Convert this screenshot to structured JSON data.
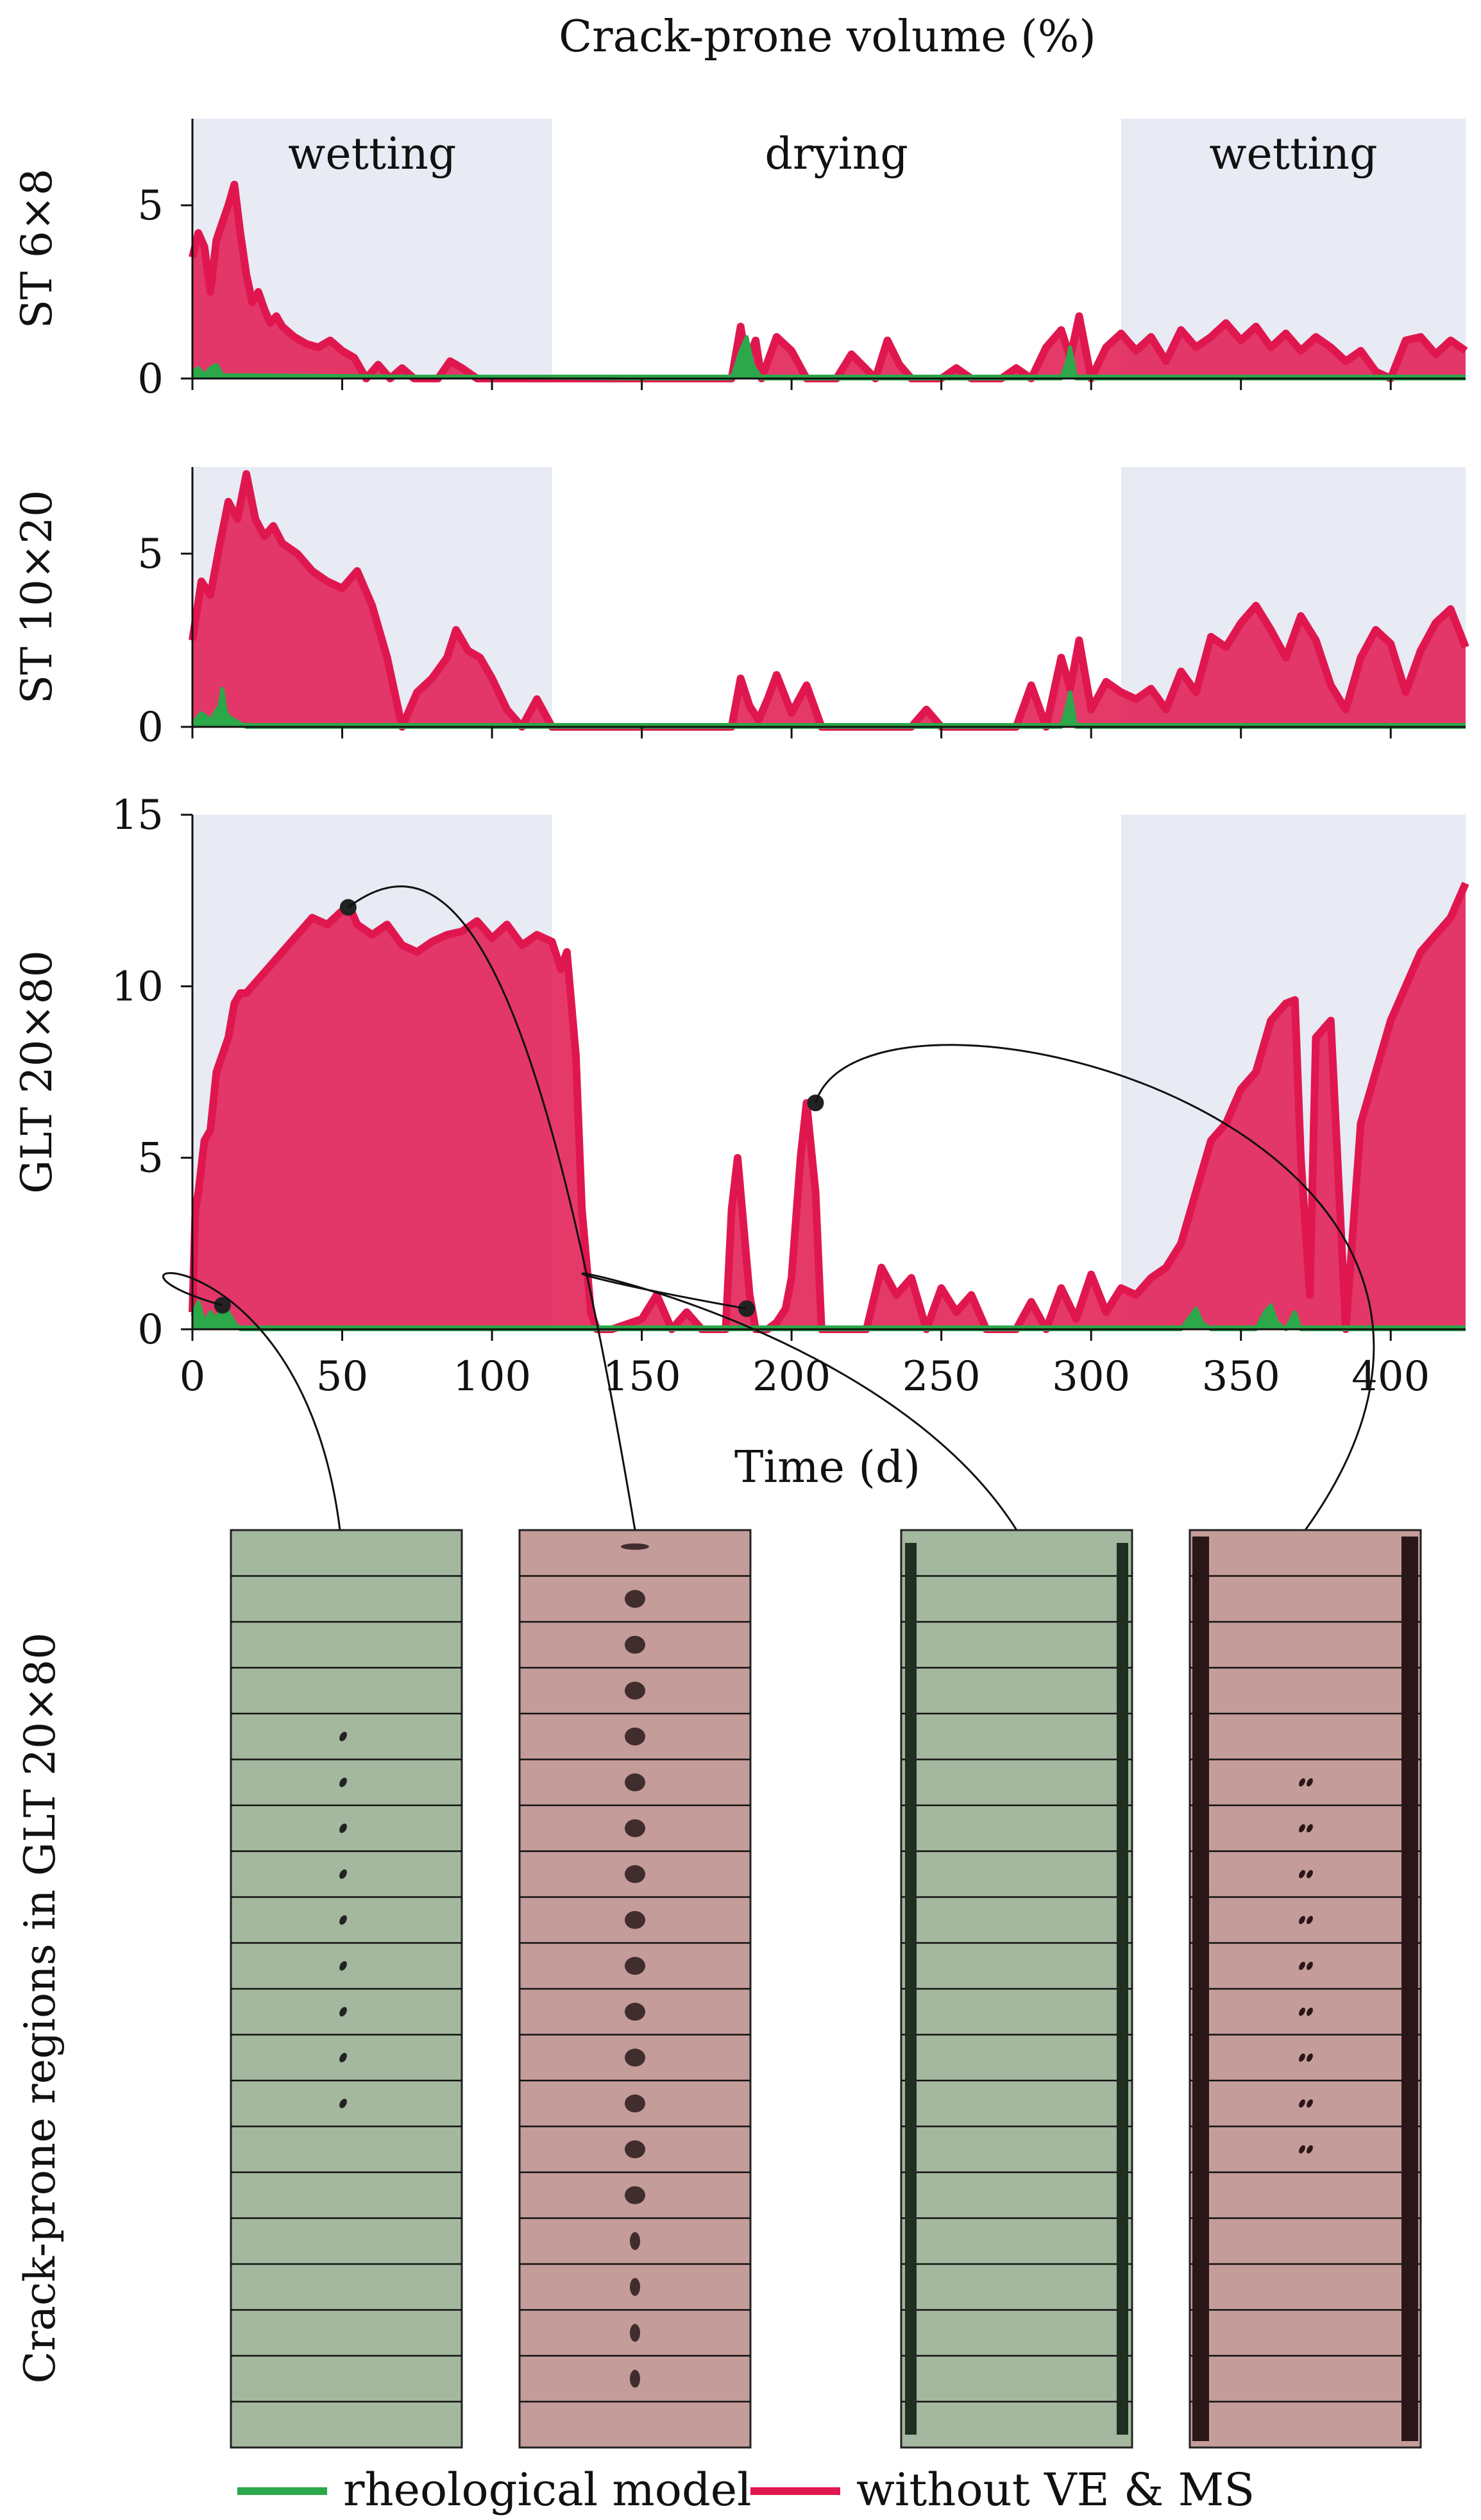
{
  "chart_data": {
    "type": "area",
    "title": "Crack-prone volume (%)",
    "xlabel": "Time (d)",
    "xlim": [
      0,
      425
    ],
    "xticks": [
      0,
      50,
      100,
      150,
      200,
      250,
      300,
      350,
      400
    ],
    "phases": [
      {
        "label": "wetting",
        "start": 0,
        "end": 120,
        "shaded": true
      },
      {
        "label": "drying",
        "start": 120,
        "end": 310,
        "shaded": false
      },
      {
        "label": "wetting",
        "start": 310,
        "end": 425,
        "shaded": true
      }
    ],
    "colors": {
      "rheological": "#2ca84a",
      "without": "#e0174f",
      "shade": "#e8eaf4",
      "thumb_green": "#a3b89e",
      "thumb_red": "#c49c9a"
    },
    "legend": [
      {
        "name": "rheological model",
        "color": "#2ca84a"
      },
      {
        "name": "without VE & MS",
        "color": "#e0174f"
      }
    ],
    "panels": [
      {
        "ylabel": "ST 6×8",
        "ylim": [
          0,
          7.5
        ],
        "yticks": [
          0,
          5
        ],
        "series": [
          {
            "name": "without VE & MS",
            "x": [
              0,
              2,
              4,
              6,
              8,
              10,
              12,
              14,
              16,
              18,
              20,
              22,
              24,
              26,
              28,
              30,
              34,
              38,
              42,
              46,
              50,
              54,
              58,
              62,
              66,
              70,
              74,
              78,
              82,
              86,
              90,
              95,
              100,
              110,
              118,
              130,
              150,
              170,
              180,
              183,
              185,
              188,
              190,
              195,
              200,
              205,
              210,
              215,
              220,
              228,
              232,
              236,
              240,
              250,
              255,
              260,
              270,
              275,
              280,
              285,
              290,
              293,
              296,
              300,
              305,
              310,
              315,
              320,
              325,
              330,
              335,
              340,
              345,
              350,
              355,
              360,
              365,
              370,
              375,
              380,
              385,
              390,
              395,
              400,
              405,
              410,
              415,
              420,
              425
            ],
            "y": [
              3.5,
              4.2,
              3.8,
              2.5,
              4.0,
              4.5,
              5.0,
              5.6,
              4.2,
              3.0,
              2.2,
              2.5,
              2.0,
              1.6,
              1.8,
              1.5,
              1.2,
              1.0,
              0.9,
              1.1,
              0.8,
              0.6,
              0.0,
              0.4,
              0.0,
              0.3,
              0.0,
              0.0,
              0.0,
              0.5,
              0.3,
              0.0,
              0.0,
              0.0,
              0.0,
              0.0,
              0.0,
              0.0,
              0.0,
              1.5,
              0.4,
              1.1,
              0.0,
              1.2,
              0.8,
              0.0,
              0.0,
              0.0,
              0.7,
              0.0,
              1.1,
              0.4,
              0.0,
              0.0,
              0.3,
              0.0,
              0.0,
              0.3,
              0.0,
              0.9,
              1.4,
              0.6,
              1.8,
              0.0,
              0.9,
              1.3,
              0.8,
              1.2,
              0.5,
              1.4,
              0.9,
              1.2,
              1.6,
              1.1,
              1.5,
              0.9,
              1.3,
              0.8,
              1.2,
              0.9,
              0.5,
              0.8,
              0.2,
              0.0,
              1.1,
              1.2,
              0.7,
              1.1,
              0.8
            ]
          },
          {
            "name": "rheological model",
            "x": [
              0,
              2,
              4,
              6,
              8,
              10,
              150,
              180,
              183,
              185,
              187,
              190,
              290,
              292,
              293,
              295,
              425
            ],
            "y": [
              0.2,
              0.3,
              0.1,
              0.3,
              0.4,
              0.1,
              0.0,
              0.0,
              0.8,
              1.2,
              0.4,
              0.0,
              0.0,
              0.5,
              0.9,
              0.0,
              0.0
            ]
          }
        ]
      },
      {
        "ylabel": "ST 10×20",
        "ylim": [
          0,
          7.5
        ],
        "yticks": [
          0,
          5
        ],
        "series": [
          {
            "name": "without VE & MS",
            "x": [
              0,
              3,
              6,
              9,
              12,
              15,
              18,
              21,
              24,
              27,
              30,
              35,
              40,
              45,
              50,
              55,
              60,
              65,
              70,
              75,
              80,
              85,
              88,
              92,
              96,
              100,
              105,
              110,
              115,
              120,
              125,
              135,
              150,
              160,
              170,
              180,
              183,
              186,
              189,
              192,
              195,
              200,
              205,
              210,
              215,
              220,
              230,
              240,
              245,
              250,
              260,
              270,
              275,
              280,
              285,
              290,
              293,
              296,
              300,
              305,
              310,
              315,
              320,
              325,
              330,
              335,
              340,
              345,
              350,
              355,
              360,
              365,
              370,
              375,
              380,
              385,
              390,
              395,
              400,
              405,
              410,
              415,
              420,
              425
            ],
            "y": [
              2.5,
              4.2,
              3.8,
              5.2,
              6.5,
              6.0,
              7.3,
              6.0,
              5.5,
              5.8,
              5.3,
              5.0,
              4.5,
              4.2,
              4.0,
              4.5,
              3.5,
              2.0,
              0.0,
              1.0,
              1.4,
              2.0,
              2.8,
              2.2,
              2.0,
              1.4,
              0.5,
              0.0,
              0.8,
              0.0,
              0.0,
              0.0,
              0.0,
              0.0,
              0.0,
              0.0,
              1.4,
              0.6,
              0.2,
              0.8,
              1.5,
              0.4,
              1.2,
              0.0,
              0.0,
              0.0,
              0.0,
              0.0,
              0.5,
              0.0,
              0.0,
              0.0,
              0.0,
              1.2,
              0.0,
              2.0,
              1.1,
              2.5,
              0.5,
              1.3,
              1.0,
              0.8,
              1.1,
              0.5,
              1.6,
              1.0,
              2.6,
              2.3,
              3.0,
              3.5,
              2.8,
              2.0,
              3.2,
              2.5,
              1.2,
              0.5,
              2.0,
              2.8,
              2.4,
              1.0,
              2.2,
              3.0,
              3.4,
              2.3
            ]
          },
          {
            "name": "rheological model",
            "x": [
              0,
              3,
              6,
              9,
              10,
              11,
              12,
              14,
              16,
              18,
              150,
              290,
              292,
              293,
              295,
              425
            ],
            "y": [
              0.1,
              0.4,
              0.2,
              0.6,
              1.1,
              0.5,
              0.3,
              0.2,
              0.1,
              0.0,
              0.0,
              0.0,
              0.6,
              1.0,
              0.0,
              0.0
            ]
          }
        ]
      },
      {
        "ylabel": "GLT 20×80",
        "ylim": [
          0,
          15
        ],
        "yticks": [
          0,
          5,
          10,
          15
        ],
        "series": [
          {
            "name": "without VE & MS",
            "x": [
              0,
              1,
              2,
              4,
              6,
              8,
              10,
              12,
              14,
              16,
              18,
              20,
              25,
              30,
              35,
              40,
              45,
              50,
              52,
              55,
              60,
              65,
              70,
              75,
              80,
              85,
              90,
              95,
              100,
              105,
              110,
              115,
              120,
              123,
              125,
              128,
              130,
              133,
              135,
              140,
              150,
              155,
              160,
              165,
              170,
              175,
              178,
              180,
              182,
              184,
              186,
              188,
              190,
              192,
              195,
              198,
              200,
              203,
              205,
              208,
              210,
              212,
              215,
              220,
              225,
              230,
              235,
              240,
              245,
              250,
              255,
              260,
              265,
              270,
              275,
              280,
              285,
              290,
              295,
              300,
              305,
              310,
              315,
              320,
              325,
              330,
              335,
              340,
              345,
              350,
              355,
              360,
              365,
              368,
              370,
              373,
              375,
              380,
              385,
              390,
              395,
              400,
              405,
              410,
              415,
              420,
              425
            ],
            "y": [
              0.5,
              3.5,
              4.0,
              5.5,
              5.8,
              7.5,
              8.0,
              8.5,
              9.5,
              9.8,
              9.8,
              10.0,
              10.5,
              11.0,
              11.5,
              12.0,
              11.8,
              12.2,
              12.4,
              11.8,
              11.5,
              11.8,
              11.2,
              11.0,
              11.3,
              11.5,
              11.6,
              11.9,
              11.4,
              11.8,
              11.2,
              11.5,
              11.3,
              10.5,
              11.0,
              8.0,
              3.5,
              0.5,
              0.0,
              0.0,
              0.3,
              1.0,
              0.0,
              0.5,
              0.0,
              0.0,
              0.0,
              3.5,
              5.0,
              3.0,
              1.0,
              0.0,
              0.0,
              0.0,
              0.2,
              0.6,
              1.5,
              5.0,
              6.6,
              4.0,
              0.0,
              0.0,
              0.0,
              0.0,
              0.0,
              1.8,
              1.0,
              1.5,
              0.0,
              1.2,
              0.5,
              1.0,
              0.0,
              0.0,
              0.0,
              0.8,
              0.0,
              1.2,
              0.3,
              1.6,
              0.5,
              1.2,
              1.0,
              1.5,
              1.8,
              2.5,
              4.0,
              5.5,
              6.0,
              7.0,
              7.5,
              9.0,
              9.5,
              9.6,
              5.0,
              1.0,
              8.5,
              9.0,
              0.0,
              6.0,
              7.5,
              9.0,
              10.0,
              11.0,
              11.5,
              12.0,
              13.0
            ]
          },
          {
            "name": "rheological model",
            "x": [
              0,
              2,
              4,
              6,
              8,
              10,
              12,
              14,
              16,
              150,
              300,
              330,
              335,
              337,
              340,
              355,
              358,
              360,
              362,
              365,
              368,
              370,
              425
            ],
            "y": [
              0.4,
              0.8,
              0.2,
              0.5,
              0.3,
              0.7,
              0.5,
              0.2,
              0.0,
              0.0,
              0.0,
              0.0,
              0.6,
              0.2,
              0.0,
              0.0,
              0.5,
              0.7,
              0.2,
              0.0,
              0.5,
              0.0,
              0.0
            ]
          }
        ],
        "markers": [
          {
            "x": 10,
            "y": 0.7
          },
          {
            "x": 52,
            "y": 12.3
          },
          {
            "x": 185,
            "y": 0.6
          },
          {
            "x": 208,
            "y": 6.6
          }
        ]
      }
    ],
    "thumbnail_panel": {
      "ylabel": "Crack-prone regions in GLT 20×80",
      "images": [
        {
          "color": "green",
          "time": 10
        },
        {
          "color": "red",
          "time": 52
        },
        {
          "color": "green",
          "time": 185
        },
        {
          "color": "red",
          "time": 208
        }
      ]
    }
  }
}
